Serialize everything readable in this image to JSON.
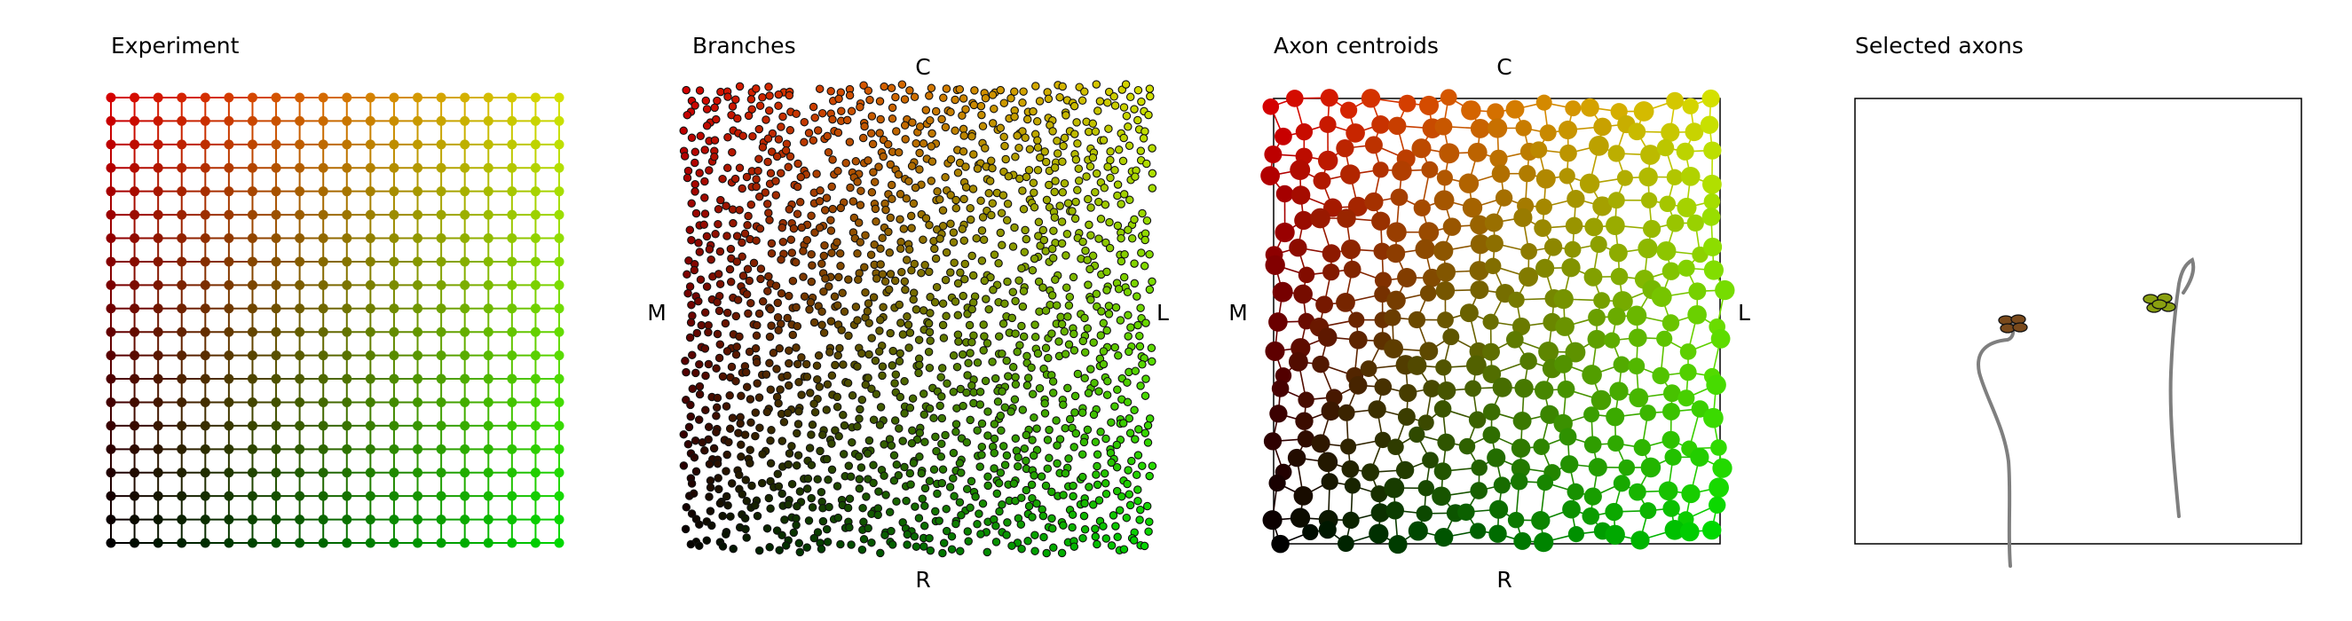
{
  "chart_data": [
    {
      "type": "scatter",
      "title": "Experiment",
      "description_grid": {
        "rows": 20,
        "cols": 20
      },
      "color_encoding": {
        "x_channel": "red-to-green",
        "y_channel": "bright-to-dark"
      },
      "corner_colors": {
        "top_left": "#d40000",
        "top_right": "#d4e000",
        "bottom_left": "#000000",
        "bottom_right": "#00d800"
      },
      "axis_labels": {
        "top": "",
        "bottom": "",
        "left": "",
        "right": ""
      },
      "frame": false
    },
    {
      "type": "scatter",
      "title": "Branches",
      "axis_labels": {
        "top": "C",
        "bottom": "R",
        "left": "M",
        "right": "L"
      },
      "frame": false
    },
    {
      "type": "scatter",
      "title": "Axon centroids",
      "axis_labels": {
        "top": "C",
        "bottom": "R",
        "left": "M",
        "right": "L"
      },
      "frame": true
    },
    {
      "type": "line",
      "title": "Selected axons",
      "axis_labels": {
        "top": "",
        "bottom": "",
        "left": "",
        "right": ""
      },
      "frame": true,
      "axon_color": "#7f7f7f",
      "series": [
        {
          "name": "",
          "cluster_color": "#7a4a1c",
          "cluster_size": 4
        },
        {
          "name": "",
          "cluster_color": "#8aa010",
          "cluster_size": 5
        }
      ]
    }
  ]
}
